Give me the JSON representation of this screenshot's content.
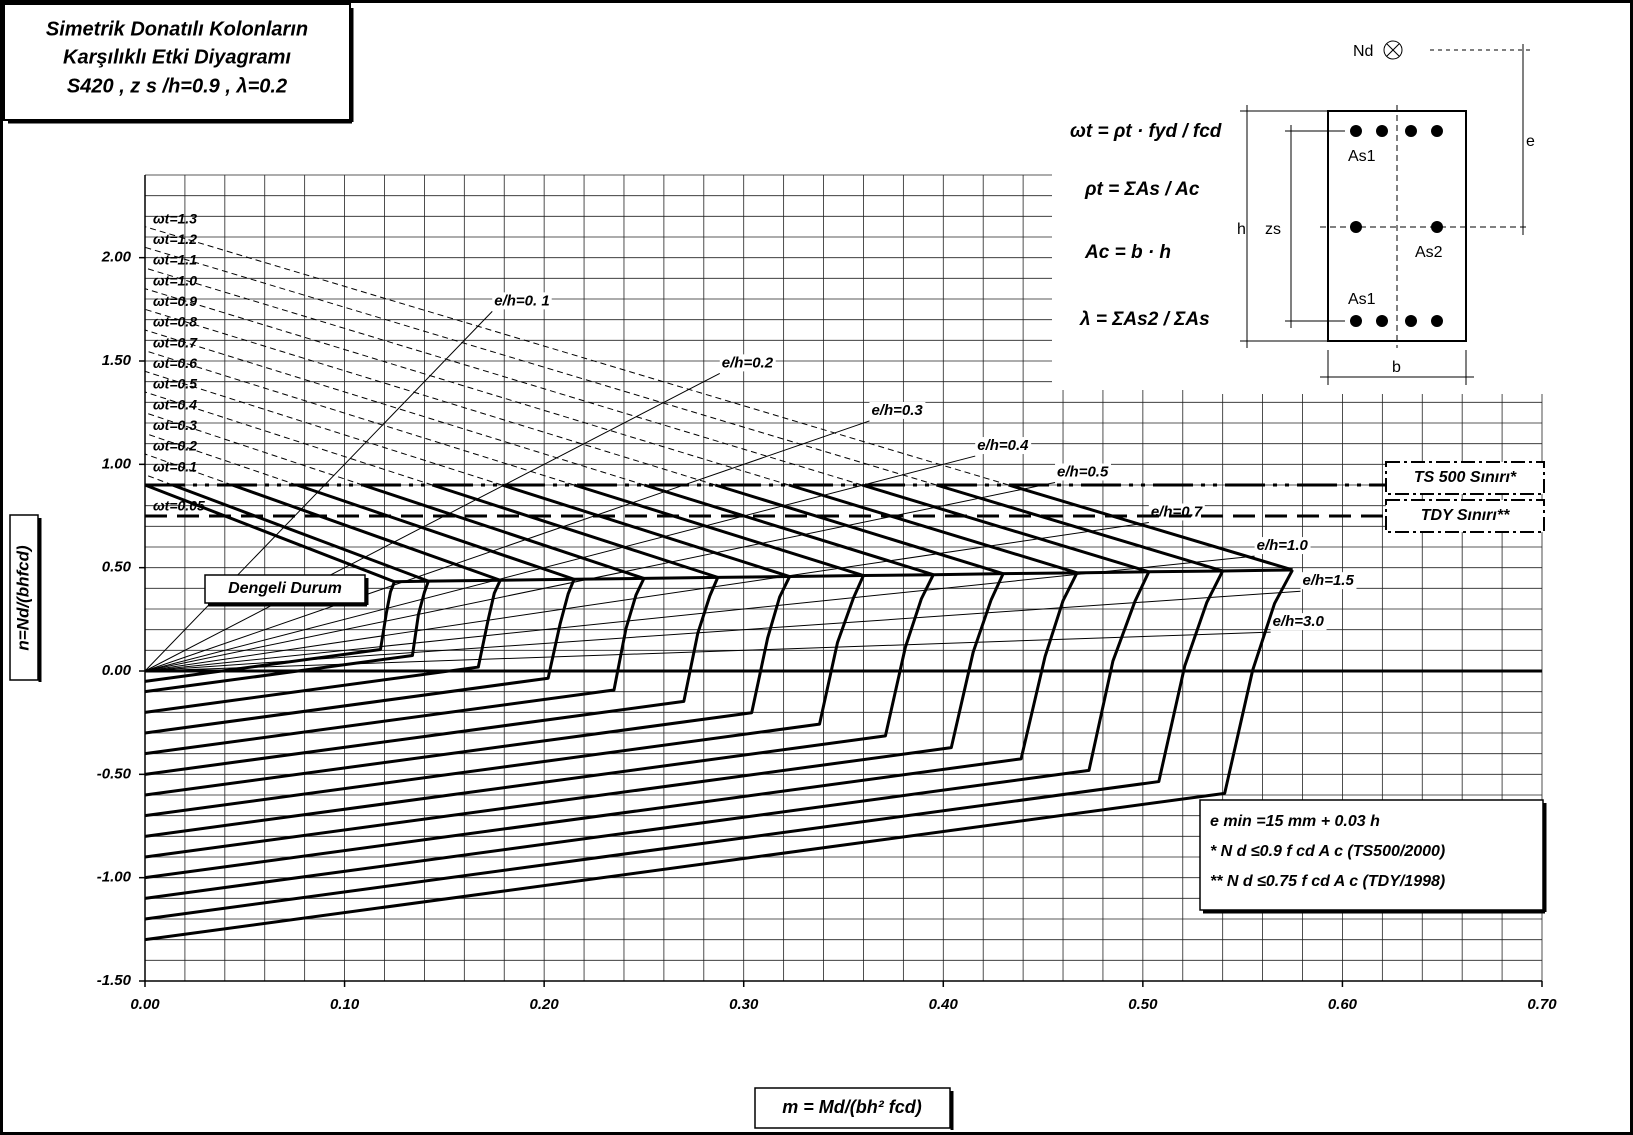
{
  "chart_data": {
    "type": "interaction",
    "title_lines": [
      "Simetrik Donatılı Kolonların",
      "Karşılıklı Etki Diyagramı",
      "S420 , z s /h=0.9 , λ=0.2"
    ],
    "x_label": "m = Md/(bh² fcd)",
    "y_label": "n=Nd/(bhfcd)",
    "xlim": [
      0,
      0.7
    ],
    "ylim": [
      -1.5,
      2.4
    ],
    "xticks": [
      {
        "value": 0,
        "label": "0.00"
      },
      {
        "value": 0.1,
        "label": "0.10"
      },
      {
        "value": 0.2,
        "label": "0.20"
      },
      {
        "value": 0.3,
        "label": "0.30"
      },
      {
        "value": 0.4,
        "label": "0.40"
      },
      {
        "value": 0.5,
        "label": "0.50"
      },
      {
        "value": 0.6,
        "label": "0.60"
      },
      {
        "value": 0.7,
        "label": "0.70"
      }
    ],
    "yticks": [
      {
        "value": -1.5,
        "label": "-1.50"
      },
      {
        "value": -1,
        "label": "-1.00"
      },
      {
        "value": -0.5,
        "label": "-0.50"
      },
      {
        "value": 0,
        "label": "0.00"
      },
      {
        "value": 0.5,
        "label": "0.50"
      },
      {
        "value": 1,
        "label": "1.00"
      },
      {
        "value": 1.5,
        "label": "1.50"
      },
      {
        "value": 2,
        "label": "2.00"
      }
    ],
    "minor_grid": {
      "x": 0.02,
      "y": 0.1
    },
    "series": [
      {
        "name": "ωt=0.05",
        "m": [
          0,
          0.118,
          0.121,
          0.123,
          0.125,
          0
        ],
        "n": [
          -0.05,
          0.104,
          0.284,
          0.383,
          0.432,
          0.9
        ]
      },
      {
        "name": "ωt=0.1",
        "m": [
          0,
          0.134,
          0.137,
          0.14,
          0.142,
          0
        ],
        "n": [
          -0.1,
          0.075,
          0.273,
          0.381,
          0.435,
          0.95
        ]
      },
      {
        "name": "ωt=0.2",
        "m": [
          0,
          0.167,
          0.172,
          0.175,
          0.178,
          0
        ],
        "n": [
          -0.2,
          0.019,
          0.25,
          0.376,
          0.439,
          1.05
        ]
      },
      {
        "name": "ωt=0.3",
        "m": [
          0,
          0.202,
          0.208,
          0.212,
          0.215,
          0
        ],
        "n": [
          -0.3,
          -0.035,
          0.228,
          0.372,
          0.444,
          1.15
        ]
      },
      {
        "name": "ωt=0.4",
        "m": [
          0,
          0.235,
          0.241,
          0.246,
          0.25,
          0
        ],
        "n": [
          -0.4,
          -0.092,
          0.205,
          0.367,
          0.448,
          1.25
        ]
      },
      {
        "name": "ωt=0.5",
        "m": [
          0,
          0.27,
          0.277,
          0.283,
          0.287,
          0
        ],
        "n": [
          -0.5,
          -0.147,
          0.183,
          0.363,
          0.453,
          1.35
        ]
      },
      {
        "name": "ωt=0.6",
        "m": [
          0,
          0.304,
          0.312,
          0.318,
          0.323,
          0
        ],
        "n": [
          -0.6,
          -0.202,
          0.16,
          0.358,
          0.457,
          1.45
        ]
      },
      {
        "name": "ωt=0.7",
        "m": [
          0,
          0.338,
          0.347,
          0.355,
          0.36,
          0
        ],
        "n": [
          -0.7,
          -0.257,
          0.138,
          0.354,
          0.462,
          1.55
        ]
      },
      {
        "name": "ωt=0.8",
        "m": [
          0,
          0.371,
          0.381,
          0.389,
          0.395,
          0
        ],
        "n": [
          -0.8,
          -0.314,
          0.115,
          0.349,
          0.466,
          1.65
        ]
      },
      {
        "name": "ωt=0.9",
        "m": [
          0,
          0.404,
          0.415,
          0.424,
          0.43,
          0
        ],
        "n": [
          -0.9,
          -0.371,
          0.092,
          0.345,
          0.471,
          1.75
        ]
      },
      {
        "name": "ωt=1.0",
        "m": [
          0,
          0.439,
          0.451,
          0.46,
          0.467,
          0
        ],
        "n": [
          -1.0,
          -0.425,
          0.07,
          0.34,
          0.475,
          1.85
        ]
      },
      {
        "name": "ωt=1.1",
        "m": [
          0,
          0.473,
          0.485,
          0.496,
          0.503,
          0
        ],
        "n": [
          -1.1,
          -0.481,
          0.048,
          0.336,
          0.48,
          1.95
        ]
      },
      {
        "name": "ωt=1.2",
        "m": [
          0,
          0.508,
          0.521,
          0.532,
          0.54,
          0
        ],
        "n": [
          -1.2,
          -0.535,
          0.025,
          0.331,
          0.484,
          2.05
        ]
      },
      {
        "name": "ωt=1.3",
        "m": [
          0,
          0.541,
          0.555,
          0.566,
          0.575,
          0
        ],
        "n": [
          -1.3,
          -0.592,
          0.003,
          0.327,
          0.489,
          2.15
        ]
      }
    ],
    "balanced_label": "Dengeli Durum",
    "eh_lines": [
      {
        "label": "e/h=0. 1",
        "value": 0.1,
        "m_end": 0.174
      },
      {
        "label": "e/h=0.2",
        "value": 0.2,
        "m_end": 0.288
      },
      {
        "label": "e/h=0.3",
        "value": 0.3,
        "m_end": 0.363
      },
      {
        "label": "e/h=0.4",
        "value": 0.4,
        "m_end": 0.416
      },
      {
        "label": "e/h=0.5",
        "value": 0.5,
        "m_end": 0.456
      },
      {
        "label": "e/h=0.7",
        "value": 0.7,
        "m_end": 0.503
      },
      {
        "label": "e/h=1.0",
        "value": 1.0,
        "m_end": 0.556
      },
      {
        "label": "e/h=1.5",
        "value": 1.5,
        "m_end": 0.579
      },
      {
        "label": "e/h=3.0",
        "value": 3.0,
        "m_end": 0.564
      }
    ],
    "ref_lines": [
      {
        "label": "TS 500 Sınırı*",
        "value": 0.9
      },
      {
        "label": "TDY Sınırı**",
        "value": 0.75
      }
    ],
    "formulas": [
      "ωt = ρt · fyd / fcd",
      "ρt = ΣAs / Ac",
      "Ac = b · h",
      "λ = ΣAs2 / ΣAs"
    ],
    "section_labels": {
      "nd": "Nd",
      "e": "e",
      "h": "h",
      "zs": "zs",
      "as1_top": "As1",
      "as2": "As2",
      "as1_bottom": "As1",
      "b": "b"
    },
    "notes": [
      "e min =15 mm + 0.03 h",
      "*  N d ≤0.9 f cd A c (TS500/2000)",
      "**  N d ≤0.75 f cd A c (TDY/1998)"
    ]
  }
}
